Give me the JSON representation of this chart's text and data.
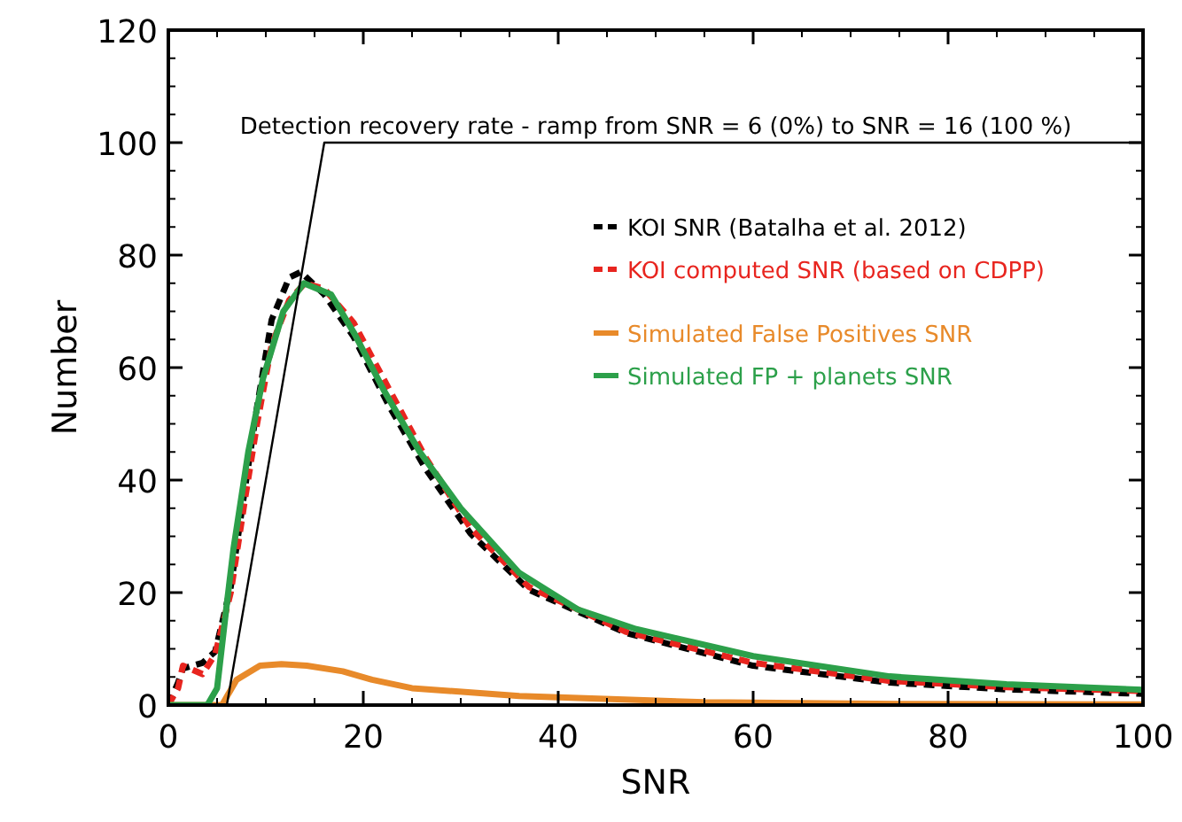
{
  "chart_data": {
    "type": "line",
    "xlabel": "SNR",
    "ylabel": "Number",
    "xlim": [
      0,
      100
    ],
    "ylim": [
      0,
      120
    ],
    "xticks": [
      0,
      20,
      40,
      60,
      80,
      100
    ],
    "yticks": [
      0,
      20,
      40,
      60,
      80,
      100,
      120
    ],
    "legend": "top right",
    "grid": false,
    "annotations": [
      {
        "text": "Detection recovery rate - ramp from SNR = 6 (0%) to SNR = 16 (100 %)",
        "x": 50,
        "y": 100
      }
    ],
    "series": [
      {
        "name": "KOI SNR (Batalha et al. 2012)",
        "color": "#000000",
        "line_style": "dashed",
        "x": [
          0,
          1,
          1.5,
          3.5,
          4.8,
          6.4,
          7.9,
          9.1,
          10.6,
          12.4,
          13.6,
          16,
          19,
          22.7,
          26.4,
          31,
          37,
          47,
          60,
          74,
          86,
          100
        ],
        "values": [
          0,
          4,
          6.5,
          7.5,
          9.5,
          21,
          39,
          53,
          68.5,
          76,
          77,
          73,
          65.5,
          53,
          42,
          30.5,
          20.5,
          12.8,
          7,
          4,
          2.8,
          2
        ]
      },
      {
        "name": "KOI computed SNR (based on CDPP)",
        "color": "#e8251f",
        "line_style": "dashed",
        "x": [
          0,
          1,
          1.5,
          3.5,
          4.8,
          6.4,
          7.9,
          9.1,
          10.6,
          12.4,
          14,
          16,
          19,
          22.7,
          26.4,
          31,
          37,
          47,
          60,
          74,
          86,
          100
        ],
        "values": [
          0,
          3,
          7,
          5.5,
          9,
          20,
          37,
          50,
          64,
          72,
          75,
          74,
          68,
          56,
          44,
          31.5,
          21,
          13,
          7.5,
          4.3,
          3.2,
          2.5
        ]
      },
      {
        "name": "Simulated False Positives SNR",
        "color": "#e88a2a",
        "line_style": "solid",
        "x": [
          0,
          5.5,
          7,
          9.4,
          11.6,
          14.2,
          17.9,
          20.9,
          25,
          36,
          55,
          75,
          100
        ],
        "values": [
          0,
          0,
          4.5,
          7,
          7.3,
          7,
          6,
          4.5,
          3,
          1.6,
          0.5,
          0.2,
          0.1
        ]
      },
      {
        "name": "Simulated FP + planets SNR",
        "color": "#2ca04a",
        "line_style": "solid",
        "x": [
          0,
          4,
          5,
          6,
          6.7,
          8.2,
          9.7,
          11.8,
          13.9,
          16.7,
          19.1,
          22.1,
          25.8,
          30,
          36,
          42,
          48,
          60,
          74,
          86,
          100
        ],
        "values": [
          0,
          0,
          3,
          18,
          28,
          45,
          58,
          70,
          75,
          73,
          66,
          56,
          45,
          35,
          23.5,
          17,
          13.5,
          8.7,
          5.1,
          3.7,
          2.7
        ]
      },
      {
        "color": "#000000",
        "line_style": "solid",
        "x": [
          6,
          16,
          100
        ],
        "values": [
          0,
          100,
          100
        ]
      }
    ]
  }
}
